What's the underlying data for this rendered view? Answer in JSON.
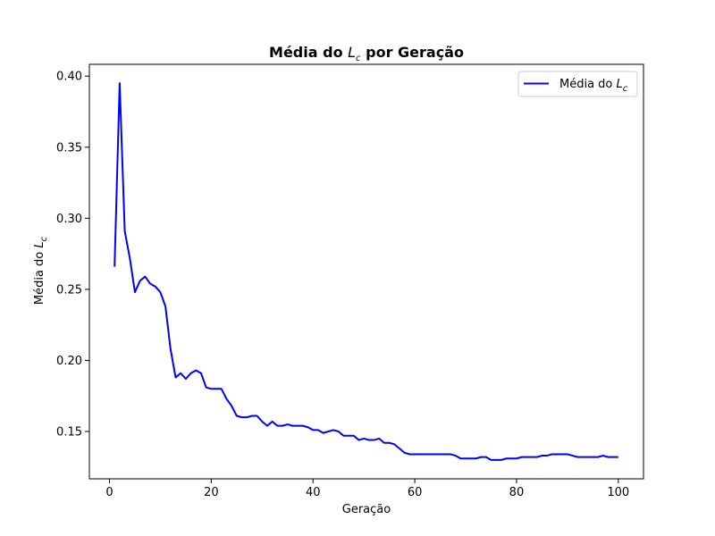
{
  "chart_data": {
    "type": "line",
    "title_parts": {
      "prefix": "Média do ",
      "symbol": "L",
      "subscript": "c",
      "suffix": " por Geração"
    },
    "xlabel": "Geração",
    "ylabel_parts": {
      "prefix": "Média do ",
      "symbol": "L",
      "subscript": "c"
    },
    "xlim": [
      -3.95,
      104.95
    ],
    "ylim": [
      0.1167,
      0.4083
    ],
    "xticks": [
      0,
      20,
      40,
      60,
      80,
      100
    ],
    "xtick_labels": [
      "0",
      "20",
      "40",
      "60",
      "80",
      "100"
    ],
    "yticks": [
      0.15,
      0.2,
      0.25,
      0.3,
      0.35,
      0.4
    ],
    "ytick_labels": [
      "0.15",
      "0.20",
      "0.25",
      "0.30",
      "0.35",
      "0.40"
    ],
    "grid": false,
    "legend": {
      "position": "top-right"
    },
    "series": [
      {
        "name_parts": {
          "prefix": "Média do ",
          "symbol": "L",
          "subscript": "c"
        },
        "color": "#0000ff",
        "x": [
          1,
          2,
          3,
          4,
          5,
          6,
          7,
          8,
          9,
          10,
          11,
          12,
          13,
          14,
          15,
          16,
          17,
          18,
          19,
          20,
          21,
          22,
          23,
          24,
          25,
          26,
          27,
          28,
          29,
          30,
          31,
          32,
          33,
          34,
          35,
          36,
          37,
          38,
          39,
          40,
          41,
          42,
          43,
          44,
          45,
          46,
          47,
          48,
          49,
          50,
          51,
          52,
          53,
          54,
          55,
          56,
          57,
          58,
          59,
          60,
          61,
          62,
          63,
          64,
          65,
          66,
          67,
          68,
          69,
          70,
          71,
          72,
          73,
          74,
          75,
          76,
          77,
          78,
          79,
          80,
          81,
          82,
          83,
          84,
          85,
          86,
          87,
          88,
          89,
          90,
          91,
          92,
          93,
          94,
          95,
          96,
          97,
          98,
          99,
          100
        ],
        "y": [
          0.266,
          0.395,
          0.291,
          0.272,
          0.248,
          0.256,
          0.259,
          0.254,
          0.252,
          0.248,
          0.238,
          0.208,
          0.188,
          0.191,
          0.187,
          0.191,
          0.193,
          0.191,
          0.181,
          0.18,
          0.18,
          0.18,
          0.173,
          0.168,
          0.161,
          0.16,
          0.16,
          0.161,
          0.161,
          0.157,
          0.154,
          0.157,
          0.154,
          0.154,
          0.155,
          0.154,
          0.154,
          0.154,
          0.153,
          0.151,
          0.151,
          0.149,
          0.15,
          0.151,
          0.15,
          0.147,
          0.147,
          0.147,
          0.144,
          0.145,
          0.144,
          0.144,
          0.145,
          0.142,
          0.142,
          0.141,
          0.138,
          0.135,
          0.134,
          0.134,
          0.134,
          0.134,
          0.134,
          0.134,
          0.134,
          0.134,
          0.134,
          0.133,
          0.131,
          0.131,
          0.131,
          0.131,
          0.132,
          0.132,
          0.13,
          0.13,
          0.13,
          0.131,
          0.131,
          0.131,
          0.132,
          0.132,
          0.132,
          0.132,
          0.133,
          0.133,
          0.134,
          0.134,
          0.134,
          0.134,
          0.133,
          0.132,
          0.132,
          0.132,
          0.132,
          0.132,
          0.133,
          0.132,
          0.132,
          0.132
        ]
      }
    ]
  }
}
